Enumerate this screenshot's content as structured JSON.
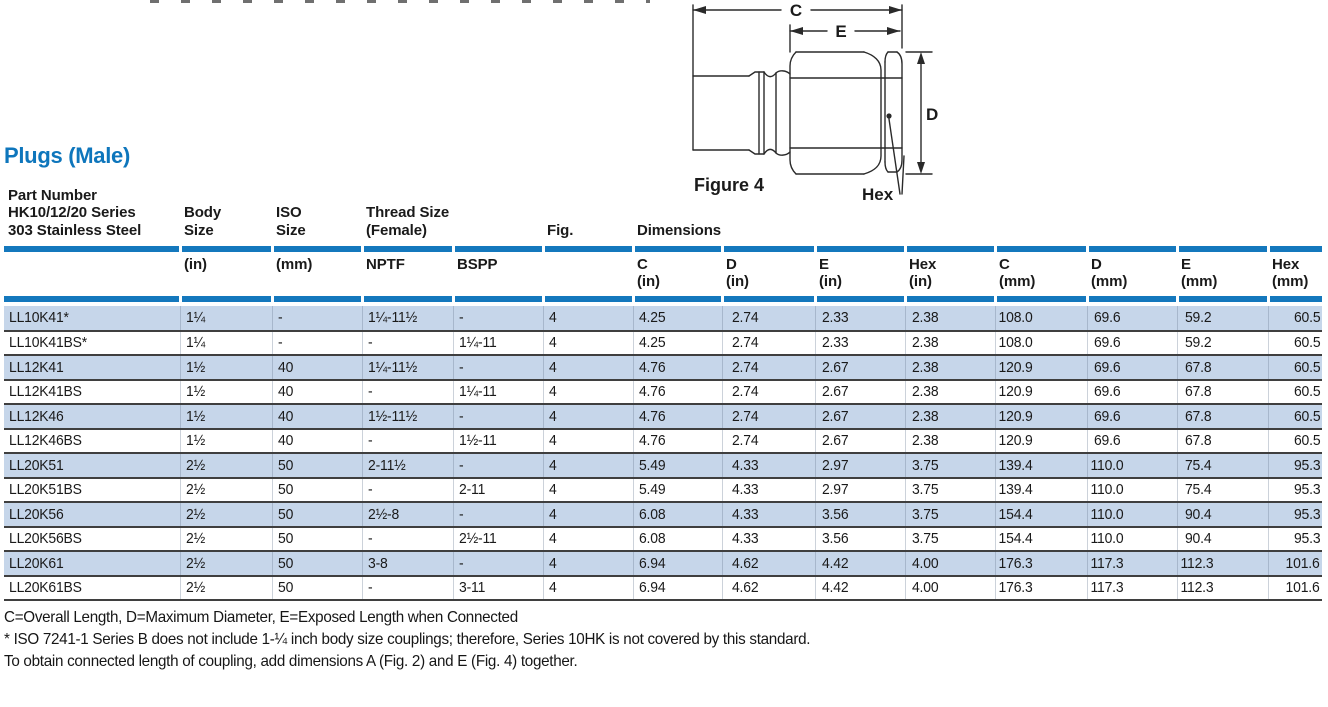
{
  "page": {
    "title": "Plugs (Male)"
  },
  "figure": {
    "caption": "Figure 4",
    "labels": {
      "c": "C",
      "e": "E",
      "d": "D",
      "hex": "Hex"
    }
  },
  "table": {
    "header": {
      "part_number": "Part Number\nHK10/12/20 Series\n303 Stainless Steel",
      "body_size": "Body\nSize",
      "iso_size": "ISO\nSize",
      "thread_size": "Thread Size\n(Female)",
      "fig": "Fig.",
      "dimensions": "Dimensions"
    },
    "units": [
      "",
      "(in)",
      "(mm)",
      "NPTF",
      "BSPP",
      "",
      "C\n(in)",
      "D\n(in)",
      "E\n(in)",
      "Hex\n(in)",
      "C\n(mm)",
      "D\n(mm)",
      "E\n(mm)",
      "Hex\n(mm)"
    ],
    "rows": [
      [
        "LL10K41*",
        "1¼",
        "-",
        "1¼-11½",
        "-",
        "4",
        "4.25",
        "2.74",
        "2.33",
        "2.38",
        "108.0",
        "69.6",
        "59.2",
        "60.5"
      ],
      [
        "LL10K41BS*",
        "1¼",
        "-",
        "-",
        "1¼-11",
        "4",
        "4.25",
        "2.74",
        "2.33",
        "2.38",
        "108.0",
        "69.6",
        "59.2",
        "60.5"
      ],
      [
        "LL12K41",
        "1½",
        "40",
        "1¼-11½",
        "-",
        "4",
        "4.76",
        "2.74",
        "2.67",
        "2.38",
        "120.9",
        "69.6",
        "67.8",
        "60.5"
      ],
      [
        "LL12K41BS",
        "1½",
        "40",
        "-",
        "1¼-11",
        "4",
        "4.76",
        "2.74",
        "2.67",
        "2.38",
        "120.9",
        "69.6",
        "67.8",
        "60.5"
      ],
      [
        "LL12K46",
        "1½",
        "40",
        "1½-11½",
        "-",
        "4",
        "4.76",
        "2.74",
        "2.67",
        "2.38",
        "120.9",
        "69.6",
        "67.8",
        "60.5"
      ],
      [
        "LL12K46BS",
        "1½",
        "40",
        "-",
        "1½-11",
        "4",
        "4.76",
        "2.74",
        "2.67",
        "2.38",
        "120.9",
        "69.6",
        "67.8",
        "60.5"
      ],
      [
        "LL20K51",
        "2½",
        "50",
        "2-11½",
        "-",
        "4",
        "5.49",
        "4.33",
        "2.97",
        "3.75",
        "139.4",
        "110.0",
        "75.4",
        "95.3"
      ],
      [
        "LL20K51BS",
        "2½",
        "50",
        "-",
        "2-11",
        "4",
        "5.49",
        "4.33",
        "2.97",
        "3.75",
        "139.4",
        "110.0",
        "75.4",
        "95.3"
      ],
      [
        "LL20K56",
        "2½",
        "50",
        "2½-8",
        "-",
        "4",
        "6.08",
        "4.33",
        "3.56",
        "3.75",
        "154.4",
        "110.0",
        "90.4",
        "95.3"
      ],
      [
        "LL20K56BS",
        "2½",
        "50",
        "-",
        "2½-11",
        "4",
        "6.08",
        "4.33",
        "3.56",
        "3.75",
        "154.4",
        "110.0",
        "90.4",
        "95.3"
      ],
      [
        "LL20K61",
        "2½",
        "50",
        "3-8",
        "-",
        "4",
        "6.94",
        "4.62",
        "4.42",
        "4.00",
        "176.3",
        "117.3",
        "112.3",
        "101.6"
      ],
      [
        "LL20K61BS",
        "2½",
        "50",
        "-",
        "3-11",
        "4",
        "6.94",
        "4.62",
        "4.42",
        "4.00",
        "176.3",
        "117.3",
        "112.3",
        "101.6"
      ]
    ]
  },
  "notes": [
    "C=Overall Length, D=Maximum Diameter, E=Exposed Length when Connected",
    "* ISO 7241-1 Series B does not include 1-¼ inch body size couplings; therefore, Series 10HK is not covered by this standard.",
    "To obtain connected length of coupling, add dimensions A (Fig. 2) and E (Fig. 4)  together."
  ],
  "colors": {
    "accent_blue": "#1478bd",
    "row_band_blue": "#c6d6ea",
    "title_blue": "#0e76bc",
    "rule_dark": "#3f3f3f"
  }
}
